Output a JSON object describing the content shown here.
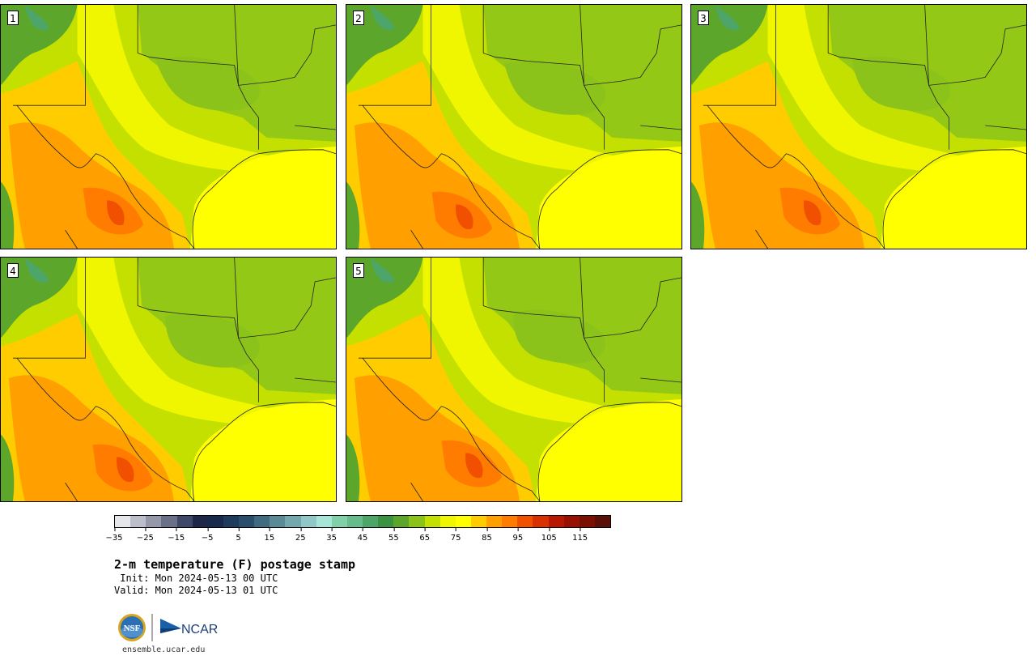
{
  "panels": [
    {
      "label": "1",
      "variant": 0
    },
    {
      "label": "2",
      "variant": 1
    },
    {
      "label": "3",
      "variant": 2
    },
    {
      "label": "4",
      "variant": 3
    },
    {
      "label": "5",
      "variant": 4
    }
  ],
  "colorbar": {
    "colors": [
      "#e4e6ea",
      "#bcbfcb",
      "#9498a8",
      "#6a7088",
      "#3f4868",
      "#1d2848",
      "#172a4c",
      "#1e3a5c",
      "#2b4d6c",
      "#406a80",
      "#5a8a96",
      "#73a8ae",
      "#8fc8c6",
      "#a6e6d9",
      "#80d0aa",
      "#66bc8a",
      "#4ea56a",
      "#3a9341",
      "#5ba62b",
      "#8cc31a",
      "#c3e000",
      "#f0f500",
      "#ffff00",
      "#ffcc00",
      "#ff9f00",
      "#ff7c00",
      "#f05000",
      "#d83000",
      "#b81800",
      "#981000",
      "#7a1000",
      "#5a1006"
    ],
    "tick_labels": [
      "−35",
      "−25",
      "−15",
      "−5",
      "5",
      "15",
      "25",
      "35",
      "45",
      "55",
      "65",
      "75",
      "85",
      "95",
      "105",
      "115"
    ]
  },
  "title": "2-m temperature (F) postage stamp",
  "init_line": " Init: Mon 2024-05-13 00 UTC",
  "valid_line": "Valid: Mon 2024-05-13 01 UTC",
  "logo": {
    "nsf": "NSF",
    "ncar": "NCAR"
  },
  "url": "ensemble.ucar.edu"
}
